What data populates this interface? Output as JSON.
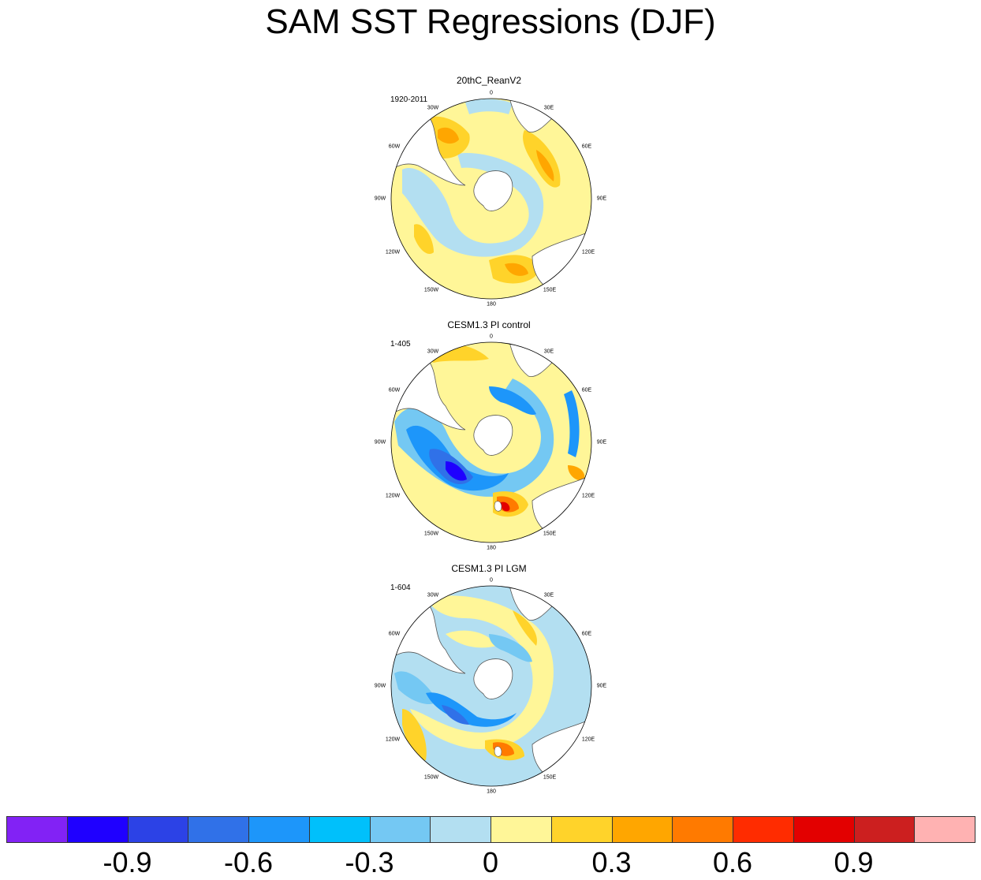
{
  "title": "SAM SST Regressions (DJF)",
  "panels": [
    {
      "title": "20thC_ReanV2",
      "period": "1920-2011"
    },
    {
      "title": "CESM1.3 PI control",
      "period": "1-405"
    },
    {
      "title": "CESM1.3 PI LGM",
      "period": "1-604"
    }
  ],
  "lon_labels": [
    "0",
    "30E",
    "60E",
    "90E",
    "120E",
    "150E",
    "180",
    "150W",
    "120W",
    "90W",
    "60W",
    "30W"
  ],
  "colorbar": {
    "colors": [
      "#8222f5",
      "#1f00ff",
      "#2c42e6",
      "#3071e8",
      "#1d96fa",
      "#00c0fb",
      "#74c8f3",
      "#b3dff1",
      "#fff698",
      "#ffd32a",
      "#ffa600",
      "#ff7a00",
      "#ff2c00",
      "#e30000",
      "#cc1f1f",
      "#ffb2b2"
    ],
    "tick_labels": [
      "-0.9",
      "-0.6",
      "-0.3",
      "0",
      "0.3",
      "0.6",
      "0.9"
    ]
  },
  "land_color": "#ffffff",
  "coastline_color": "#555555"
}
